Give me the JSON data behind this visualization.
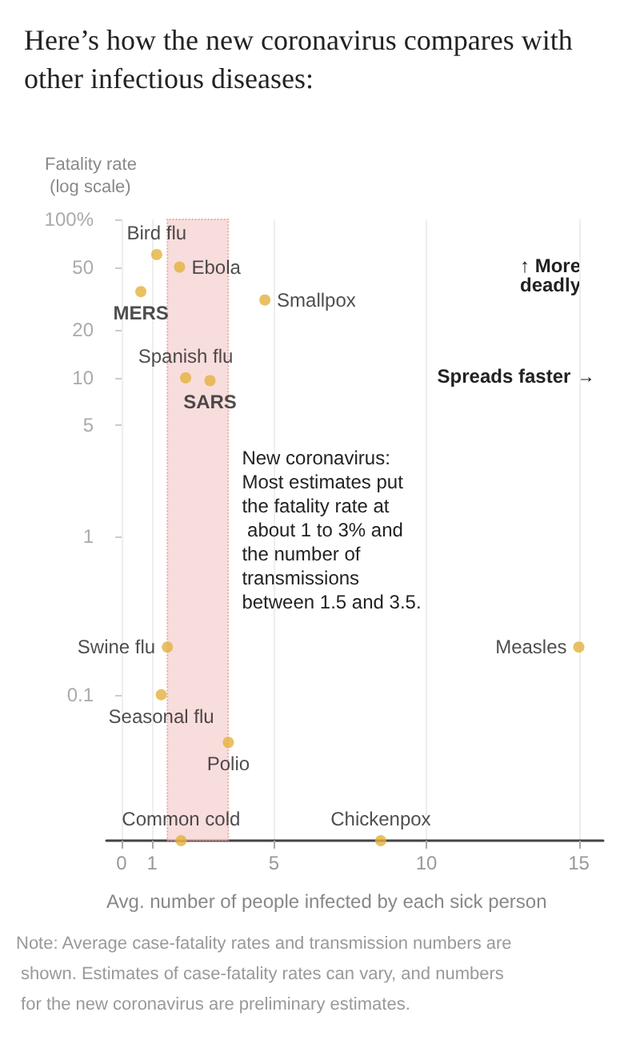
{
  "chart_data": {
    "type": "scatter",
    "title": "Here’s how the new coronavirus compares with other infectious diseases:",
    "xlabel": "Avg. number of people infected by each sick person",
    "ylabel": "Fatality rate (log scale)",
    "log": "y",
    "grid": "x",
    "marker": "circle",
    "legend": false,
    "xlim": [
      -0.5,
      15.8
    ],
    "xticks": [
      0,
      1,
      5,
      10,
      15
    ],
    "ylim": [
      0.012,
      100
    ],
    "yticks": [
      {
        "value": 100,
        "label": "100%"
      },
      50,
      20,
      10,
      5,
      1,
      0.1
    ],
    "series": [
      {
        "name": "Bird flu",
        "color": "#e3b23c",
        "x": [
          1.15
        ],
        "values": [
          60
        ]
      },
      {
        "name": "Ebola",
        "color": "#e3b23c",
        "x": [
          1.9
        ],
        "values": [
          50
        ]
      },
      {
        "name": "MERS",
        "color": "#e3b23c",
        "x": [
          0.63
        ],
        "values": [
          35
        ]
      },
      {
        "name": "Smallpox",
        "color": "#e3b23c",
        "x": [
          4.7
        ],
        "values": [
          31
        ]
      },
      {
        "name": "Spanish flu",
        "color": "#e3b23c",
        "x": [
          2.1
        ],
        "values": [
          10
        ]
      },
      {
        "name": "SARS",
        "color": "#e3b23c",
        "x": [
          2.9
        ],
        "values": [
          9.6
        ]
      },
      {
        "name": "Swine flu",
        "color": "#e3b23c",
        "x": [
          1.5
        ],
        "values": [
          0.2
        ]
      },
      {
        "name": "Measles",
        "color": "#e3b23c",
        "x": [
          15
        ],
        "values": [
          0.2
        ]
      },
      {
        "name": "Seasonal flu",
        "color": "#e3b23c",
        "x": [
          1.3
        ],
        "values": [
          0.1
        ]
      },
      {
        "name": "Polio",
        "color": "#e3b23c",
        "x": [
          3.5
        ],
        "values": [
          0.05
        ]
      },
      {
        "name": "Common cold",
        "color": "#e3b23c",
        "x": [
          1.95
        ],
        "values": [
          0.012
        ]
      },
      {
        "name": "Chickenpox",
        "color": "#e3b23c",
        "x": [
          8.5
        ],
        "values": [
          0.012
        ]
      }
    ],
    "bands": [
      {
        "axis": "x",
        "from": 1.5,
        "to": 3.5,
        "color": "#f4c7c7",
        "label": "New coronavirus: Most estimates put the fatality rate at about 1 to 3% and the number of transmissions between 1.5 and 3.5."
      }
    ],
    "annotations": [
      "↑ More deadly",
      "Spreads faster →",
      "Note: Average case-fatality rates and transmission numbers are shown. Estimates of case-fatality rates can vary, and numbers for the new coronavirus are preliminary estimates."
    ]
  }
}
